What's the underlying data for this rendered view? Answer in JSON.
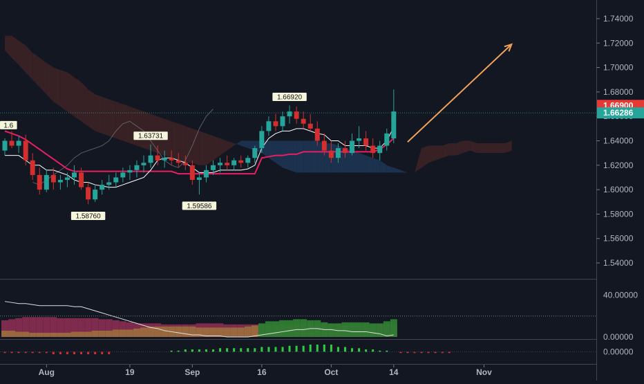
{
  "colors": {
    "background": "#131722",
    "axis_text": "#b2b5be",
    "bull": "#26a69a",
    "bull_dim": "#1f6f63",
    "bear": "#d32f2f",
    "bear_dim": "#9e2a2b",
    "cloud_bear": "#3a2226",
    "cloud_bull": "#1c3350",
    "kijun": "#e91e63",
    "tenkan": "#ffffff",
    "chikou": "#787b86",
    "arrow": "#f0a15b",
    "price_tag_red": "#e53935",
    "price_tag_green": "#26a69a"
  },
  "price_axis": {
    "ticks": [
      "1.74000",
      "1.72000",
      "1.70000",
      "1.68000",
      "1.66000",
      "1.64000",
      "1.62000",
      "1.60000",
      "1.58000",
      "1.56000",
      "1.54000"
    ],
    "tick_values": [
      1.74,
      1.72,
      1.7,
      1.68,
      1.66,
      1.64,
      1.62,
      1.6,
      1.58,
      1.56,
      1.54
    ]
  },
  "price_tags": [
    {
      "label": "1.66900",
      "value": 1.669,
      "color": "#e53935"
    },
    {
      "label": "1.66286",
      "value": 1.66286,
      "color": "#26a69a"
    }
  ],
  "annotations": [
    {
      "label": "1.63731",
      "value": 1.63731,
      "bar": 21,
      "position": "above"
    },
    {
      "label": "1.66920",
      "value": 1.6692,
      "bar": 41,
      "position": "above"
    },
    {
      "label": "1.58760",
      "value": 1.5876,
      "bar": 12,
      "position": "below"
    },
    {
      "label": "1.59586",
      "value": 1.59586,
      "bar": 28,
      "position": "below"
    },
    {
      "label": "1.6",
      "value": 1.646,
      "bar": 0,
      "position": "above"
    }
  ],
  "time_axis": [
    {
      "label": "Aug",
      "bar": 6
    },
    {
      "label": "19",
      "bar": 18
    },
    {
      "label": "Sep",
      "bar": 27
    },
    {
      "label": "16",
      "bar": 37
    },
    {
      "label": "Oct",
      "bar": 47
    },
    {
      "label": "14",
      "bar": 56
    },
    {
      "label": "Nov",
      "bar": 69
    }
  ],
  "adx_axis": {
    "ticks": [
      "40.00000",
      "0.00000"
    ],
    "tick_values": [
      40,
      0
    ]
  },
  "osc_axis": {
    "ticks": [
      "0.00000"
    ],
    "tick_values": [
      0
    ]
  },
  "chart_data": {
    "type": "candlestick",
    "ohlc": [
      [
        1.632,
        1.642,
        1.628,
        1.64
      ],
      [
        1.64,
        1.648,
        1.634,
        1.636
      ],
      [
        1.636,
        1.644,
        1.63,
        1.64
      ],
      [
        1.64,
        1.645,
        1.62,
        1.624
      ],
      [
        1.624,
        1.63,
        1.608,
        1.612
      ],
      [
        1.612,
        1.618,
        1.596,
        1.6
      ],
      [
        1.6,
        1.616,
        1.598,
        1.612
      ],
      [
        1.612,
        1.618,
        1.6,
        1.606
      ],
      [
        1.606,
        1.612,
        1.6,
        1.608
      ],
      [
        1.608,
        1.614,
        1.602,
        1.61
      ],
      [
        1.61,
        1.62,
        1.604,
        1.614
      ],
      [
        1.614,
        1.618,
        1.6,
        1.602
      ],
      [
        1.602,
        1.606,
        1.588,
        1.592
      ],
      [
        1.592,
        1.604,
        1.59,
        1.6
      ],
      [
        1.6,
        1.608,
        1.596,
        1.604
      ],
      [
        1.604,
        1.612,
        1.6,
        1.606
      ],
      [
        1.606,
        1.614,
        1.602,
        1.61
      ],
      [
        1.61,
        1.618,
        1.606,
        1.614
      ],
      [
        1.614,
        1.62,
        1.608,
        1.616
      ],
      [
        1.616,
        1.624,
        1.61,
        1.62
      ],
      [
        1.62,
        1.628,
        1.614,
        1.622
      ],
      [
        1.622,
        1.637,
        1.618,
        1.628
      ],
      [
        1.628,
        1.636,
        1.62,
        1.624
      ],
      [
        1.624,
        1.632,
        1.618,
        1.626
      ],
      [
        1.626,
        1.632,
        1.62,
        1.624
      ],
      [
        1.624,
        1.63,
        1.618,
        1.622
      ],
      [
        1.622,
        1.628,
        1.616,
        1.62
      ],
      [
        1.62,
        1.624,
        1.604,
        1.608
      ],
      [
        1.608,
        1.614,
        1.596,
        1.61
      ],
      [
        1.61,
        1.62,
        1.606,
        1.616
      ],
      [
        1.616,
        1.624,
        1.612,
        1.62
      ],
      [
        1.62,
        1.626,
        1.614,
        1.622
      ],
      [
        1.622,
        1.628,
        1.616,
        1.62
      ],
      [
        1.62,
        1.626,
        1.616,
        1.624
      ],
      [
        1.624,
        1.628,
        1.618,
        1.622
      ],
      [
        1.622,
        1.628,
        1.618,
        1.626
      ],
      [
        1.626,
        1.636,
        1.622,
        1.634
      ],
      [
        1.634,
        1.652,
        1.63,
        1.648
      ],
      [
        1.648,
        1.66,
        1.644,
        1.656
      ],
      [
        1.656,
        1.662,
        1.648,
        1.652
      ],
      [
        1.652,
        1.664,
        1.648,
        1.66
      ],
      [
        1.66,
        1.669,
        1.654,
        1.664
      ],
      [
        1.664,
        1.668,
        1.654,
        1.658
      ],
      [
        1.658,
        1.664,
        1.65,
        1.654
      ],
      [
        1.654,
        1.662,
        1.648,
        1.65
      ],
      [
        1.65,
        1.656,
        1.636,
        1.64
      ],
      [
        1.64,
        1.646,
        1.628,
        1.632
      ],
      [
        1.632,
        1.64,
        1.622,
        1.626
      ],
      [
        1.626,
        1.638,
        1.622,
        1.634
      ],
      [
        1.634,
        1.64,
        1.626,
        1.63
      ],
      [
        1.63,
        1.646,
        1.628,
        1.64
      ],
      [
        1.64,
        1.652,
        1.634,
        1.642
      ],
      [
        1.642,
        1.648,
        1.632,
        1.636
      ],
      [
        1.636,
        1.642,
        1.626,
        1.63
      ],
      [
        1.63,
        1.64,
        1.624,
        1.636
      ],
      [
        1.636,
        1.65,
        1.632,
        1.646
      ],
      [
        1.642,
        1.682,
        1.638,
        1.664
      ]
    ],
    "kijun": [
      1.648,
      1.646,
      1.644,
      1.641,
      1.637,
      1.633,
      1.629,
      1.625,
      1.621,
      1.617,
      1.615,
      1.615,
      1.615,
      1.615,
      1.615,
      1.615,
      1.615,
      1.615,
      1.615,
      1.615,
      1.615,
      1.615,
      1.615,
      1.615,
      1.615,
      1.613,
      1.613,
      1.613,
      1.613,
      1.613,
      1.613,
      1.613,
      1.613,
      1.613,
      1.613,
      1.613,
      1.613,
      1.626,
      1.627,
      1.628,
      1.628,
      1.629,
      1.629,
      1.631,
      1.631,
      1.631,
      1.631,
      1.631,
      1.631,
      1.631,
      1.631,
      1.631,
      1.631,
      1.631,
      1.633,
      1.637,
      1.642
    ],
    "tenkan": [
      1.628,
      1.628,
      1.628,
      1.624,
      1.62,
      1.62,
      1.616,
      1.616,
      1.614,
      1.612,
      1.608,
      1.606,
      1.606,
      1.604,
      1.603,
      1.602,
      1.602,
      1.604,
      1.606,
      1.608,
      1.61,
      1.616,
      1.624,
      1.626,
      1.626,
      1.624,
      1.622,
      1.618,
      1.614,
      1.614,
      1.614,
      1.616,
      1.616,
      1.616,
      1.616,
      1.617,
      1.62,
      1.634,
      1.642,
      1.646,
      1.648,
      1.648,
      1.65,
      1.65,
      1.648,
      1.646,
      1.645,
      1.64,
      1.64,
      1.636,
      1.636,
      1.636,
      1.636,
      1.634,
      1.634,
      1.64,
      1.651
    ],
    "span_a": [
      1.714,
      1.708,
      1.702,
      1.696,
      1.69,
      1.684,
      1.678,
      1.672,
      1.668,
      1.664,
      1.66,
      1.656,
      1.652,
      1.648,
      1.646,
      1.644,
      1.642,
      1.64,
      1.638,
      1.636,
      1.634,
      1.632,
      1.63,
      1.628,
      1.626,
      1.624,
      1.622,
      1.622,
      1.62,
      1.62,
      1.624,
      1.628,
      1.632,
      1.636,
      1.64,
      1.64,
      1.64,
      1.64,
      1.64,
      1.64,
      1.64,
      1.64,
      1.64,
      1.64,
      1.64,
      1.64,
      1.638,
      1.638,
      1.636,
      1.634,
      1.632,
      1.63,
      1.628,
      1.626,
      1.624,
      1.62,
      1.618,
      1.616,
      1.614,
      1.614,
      1.618,
      1.622,
      1.624,
      1.626,
      1.628,
      1.628,
      1.63,
      1.632,
      1.63,
      1.63,
      1.63,
      1.63,
      1.63,
      1.632
    ],
    "span_b": [
      1.726,
      1.726,
      1.722,
      1.718,
      1.712,
      1.708,
      1.704,
      1.7,
      1.698,
      1.696,
      1.692,
      1.688,
      1.682,
      1.678,
      1.676,
      1.674,
      1.672,
      1.67,
      1.668,
      1.666,
      1.664,
      1.662,
      1.66,
      1.658,
      1.656,
      1.654,
      1.652,
      1.65,
      1.648,
      1.646,
      1.644,
      1.642,
      1.64,
      1.638,
      1.636,
      1.634,
      1.632,
      1.63,
      1.626,
      1.622,
      1.618,
      1.616,
      1.614,
      1.614,
      1.614,
      1.614,
      1.614,
      1.614,
      1.614,
      1.614,
      1.614,
      1.614,
      1.614,
      1.614,
      1.614,
      1.614,
      1.614,
      1.614,
      1.614,
      1.614,
      1.634,
      1.636,
      1.636,
      1.636,
      1.638,
      1.638,
      1.64,
      1.64,
      1.638,
      1.638,
      1.638,
      1.638,
      1.638,
      1.64
    ],
    "chikou": [
      1.606,
      1.604,
      1.608,
      1.612,
      1.616,
      1.62,
      1.626,
      1.63,
      1.632,
      1.634,
      1.636,
      1.64,
      1.648,
      1.654,
      1.656,
      1.652,
      1.648,
      1.64,
      1.632,
      1.624,
      1.62,
      1.618,
      1.624,
      1.636,
      1.65,
      1.66,
      1.666
    ],
    "adx": [
      34,
      33,
      32,
      32,
      31,
      30,
      30,
      30,
      30,
      30,
      29,
      29,
      27,
      25,
      23,
      21,
      19,
      17,
      15,
      13,
      11,
      9,
      8,
      6,
      5,
      4,
      3,
      2,
      2,
      1,
      1,
      1,
      0,
      0,
      0,
      0,
      1,
      2,
      3,
      4,
      5,
      6,
      7,
      7,
      8,
      8,
      7,
      7,
      6,
      6,
      5,
      5,
      5,
      4,
      3,
      1,
      2
    ],
    "dmi_plus": [
      6,
      6,
      5,
      5,
      4,
      4,
      4,
      4,
      4,
      4,
      5,
      5,
      5,
      6,
      6,
      6,
      7,
      7,
      7,
      8,
      9,
      10,
      10,
      10,
      10,
      10,
      10,
      10,
      9,
      9,
      9,
      9,
      9,
      9,
      9,
      10,
      11,
      13,
      15,
      15,
      16,
      16,
      17,
      17,
      16,
      16,
      14,
      13,
      13,
      14,
      14,
      14,
      14,
      13,
      13,
      15,
      17
    ],
    "dmi_minus": [
      16,
      17,
      18,
      19,
      19,
      19,
      19,
      19,
      18,
      18,
      18,
      18,
      18,
      18,
      17,
      17,
      16,
      15,
      14,
      13,
      13,
      13,
      13,
      12,
      12,
      12,
      12,
      12,
      13,
      13,
      13,
      13,
      12,
      12,
      12,
      12,
      12,
      12,
      12,
      12,
      12,
      12,
      12,
      12,
      12,
      12,
      12,
      12,
      12,
      12,
      12,
      12,
      12,
      12,
      12,
      12,
      12
    ],
    "osc": [
      -1,
      -1,
      -1,
      -1,
      -1,
      -1,
      -1,
      -2,
      -2,
      -2,
      -2,
      -2,
      -2,
      -2,
      -2,
      -2,
      0,
      0,
      0,
      0,
      0,
      0,
      0,
      0,
      1,
      1,
      2,
      2,
      2,
      2,
      2,
      3,
      3,
      3,
      3,
      3,
      3,
      4,
      4,
      4,
      4,
      5,
      5,
      5,
      6,
      6,
      6,
      6,
      4,
      4,
      3,
      3,
      2,
      2,
      1,
      1,
      0,
      -1,
      -1,
      -1,
      -1,
      -1,
      -1,
      -1,
      -1
    ],
    "arrow": {
      "from": [
        57,
        1.639
      ],
      "to": [
        67,
        1.719
      ]
    },
    "price_range": [
      1.527,
      1.753
    ],
    "adx_range": [
      -2,
      55
    ],
    "osc_range": [
      -10,
      10
    ]
  }
}
